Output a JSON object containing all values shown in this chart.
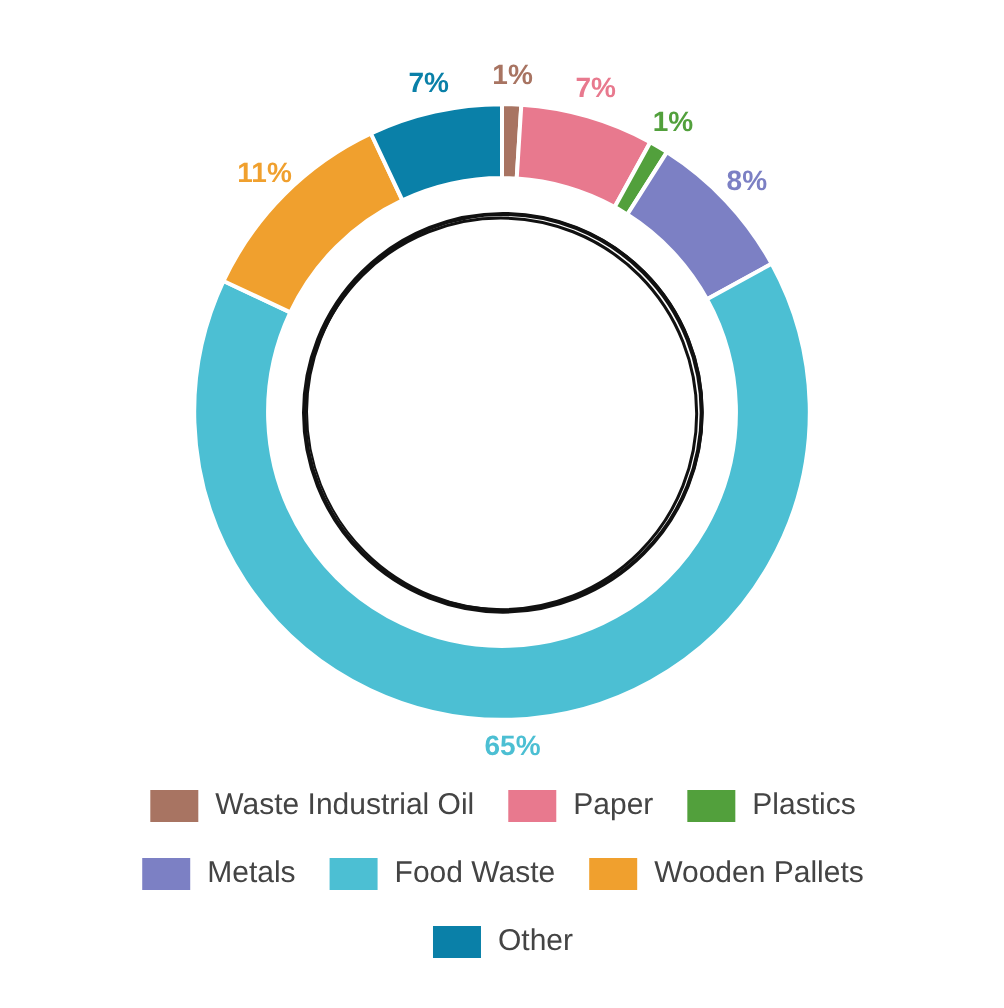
{
  "chart_data": {
    "type": "donut",
    "categories": [
      "Waste Industrial Oil",
      "Paper",
      "Plastics",
      "Metals",
      "Food Waste",
      "Wooden Pallets",
      "Other"
    ],
    "values": [
      1,
      7,
      1,
      8,
      65,
      11,
      7
    ],
    "colors": [
      "#a87462",
      "#e8798e",
      "#52a03c",
      "#7c80c4",
      "#4cbfd3",
      "#f0a02e",
      "#0a80a8"
    ],
    "value_labels": [
      "1%",
      "7%",
      "1%",
      "8%",
      "65%",
      "11%",
      "7%"
    ],
    "legend": "bottom"
  }
}
